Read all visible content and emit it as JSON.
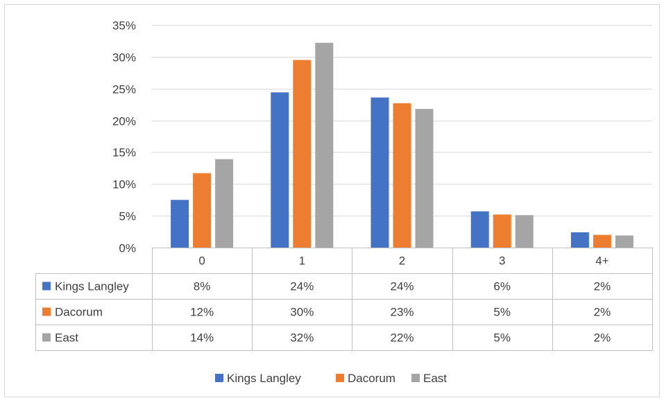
{
  "chart_data": {
    "type": "bar",
    "categories": [
      "0",
      "1",
      "2",
      "3",
      "4+"
    ],
    "series": [
      {
        "name": "Kings Langley",
        "color": "#4472C4",
        "values": [
          7.5,
          24.4,
          23.6,
          5.7,
          2.4
        ],
        "table_labels": [
          "8%",
          "24%",
          "24%",
          "6%",
          "2%"
        ]
      },
      {
        "name": "Dacorum",
        "color": "#ED7D31",
        "values": [
          11.7,
          29.5,
          22.7,
          5.2,
          2.0
        ],
        "table_labels": [
          "12%",
          "30%",
          "23%",
          "5%",
          "2%"
        ]
      },
      {
        "name": "East",
        "color": "#A5A5A5",
        "values": [
          13.9,
          32.2,
          21.8,
          5.1,
          1.9
        ],
        "table_labels": [
          "14%",
          "32%",
          "22%",
          "5%",
          "2%"
        ]
      }
    ],
    "ylim": [
      0,
      35
    ],
    "yticks": [
      "0%",
      "5%",
      "10%",
      "15%",
      "20%",
      "25%",
      "30%",
      "35%"
    ],
    "grid": true,
    "data_table": true,
    "legend_position": "bottom"
  }
}
